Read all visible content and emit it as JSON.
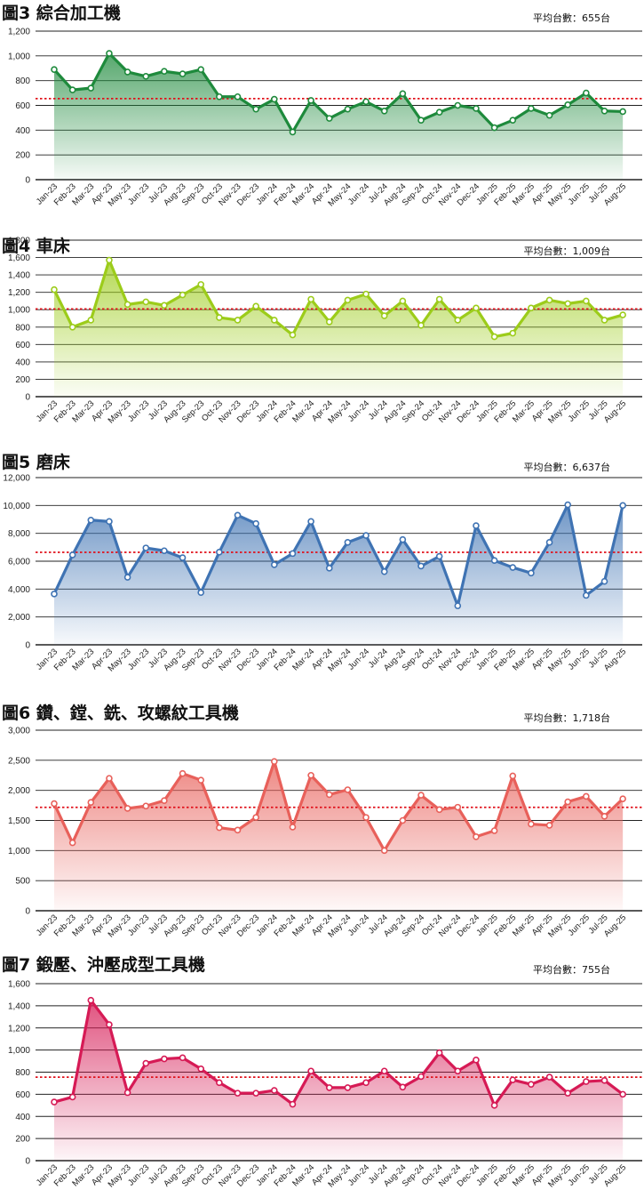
{
  "chart_data": [
    {
      "type": "area",
      "title": "圖3 綜合加工機",
      "average_label": "平均台數：655台",
      "average": 655,
      "ylim": [
        0,
        1200
      ],
      "yticks": [
        "0",
        "200",
        "400",
        "600",
        "800",
        "1,000",
        "1,200"
      ],
      "color": "#1e8a3c",
      "categories": [
        "Jan-23",
        "Feb-23",
        "Mar-23",
        "Apr-23",
        "May-23",
        "Jun-23",
        "Jul-23",
        "Aug-23",
        "Sep-23",
        "Oct-23",
        "Nov-23",
        "Dec-23",
        "Jan-24",
        "Feb-24",
        "Mar-24",
        "Apr-24",
        "May-24",
        "Jun-24",
        "Jul-24",
        "Aug-24",
        "Sep-24",
        "Oct-24",
        "Nov-24",
        "Dec-24",
        "Jan-25",
        "Feb-25",
        "Mar-25",
        "Apr-25",
        "May-25",
        "Jun-25",
        "Jul-25",
        "Aug-25"
      ],
      "values": [
        890,
        725,
        740,
        1020,
        870,
        835,
        875,
        855,
        890,
        670,
        670,
        570,
        650,
        385,
        640,
        495,
        570,
        630,
        555,
        695,
        480,
        545,
        600,
        575,
        420,
        480,
        575,
        520,
        605,
        700,
        555,
        550
      ]
    },
    {
      "type": "area",
      "title": "圖4 車床",
      "average_label": "平均台數：1,009台",
      "average": 1009,
      "ylim": [
        0,
        1800
      ],
      "yticks": [
        "0",
        "200",
        "400",
        "600",
        "800",
        "1,000",
        "1,200",
        "1,400",
        "1,600",
        "1,800"
      ],
      "color": "#9ccc1a",
      "categories": [
        "Jan-23",
        "Feb-23",
        "Mar-23",
        "Apr-23",
        "May-23",
        "Jun-23",
        "Jul-23",
        "Aug-23",
        "Sep-23",
        "Oct-23",
        "Nov-23",
        "Dec-23",
        "Jan-24",
        "Feb-24",
        "Mar-24",
        "Apr-24",
        "May-24",
        "Jun-24",
        "Jul-24",
        "Aug-24",
        "Sep-24",
        "Oct-24",
        "Nov-24",
        "Dec-24",
        "Jan-25",
        "Feb-25",
        "Mar-25",
        "Apr-25",
        "May-25",
        "Jun-25",
        "Jul-25",
        "Aug-25"
      ],
      "values": [
        1230,
        800,
        880,
        1570,
        1060,
        1090,
        1050,
        1170,
        1290,
        910,
        880,
        1040,
        880,
        710,
        1120,
        860,
        1110,
        1180,
        930,
        1100,
        820,
        1120,
        880,
        1020,
        690,
        730,
        1020,
        1110,
        1070,
        1100,
        880,
        940
      ]
    },
    {
      "type": "area",
      "title": "圖5 磨床",
      "average_label": "平均台數：6,637台",
      "average": 6637,
      "ylim": [
        0,
        12000
      ],
      "yticks": [
        "0",
        "2,000",
        "4,000",
        "6,000",
        "8,000",
        "10,000",
        "12,000"
      ],
      "color": "#3f73b3",
      "categories": [
        "Jan-23",
        "Feb-23",
        "Mar-23",
        "Apr-23",
        "May-23",
        "Jun-23",
        "Jul-23",
        "Aug-23",
        "Sep-23",
        "Oct-23",
        "Nov-23",
        "Dec-23",
        "Jan-24",
        "Feb-24",
        "Mar-24",
        "Apr-24",
        "May-24",
        "Jun-24",
        "Jul-24",
        "Aug-24",
        "Sep-24",
        "Oct-24",
        "Nov-24",
        "Dec-24",
        "Jan-25",
        "Feb-25",
        "Mar-25",
        "Apr-25",
        "May-25",
        "Jun-25",
        "Jul-25",
        "Aug-25"
      ],
      "values": [
        3650,
        6450,
        8950,
        8850,
        4850,
        6950,
        6750,
        6250,
        3750,
        6650,
        9300,
        8700,
        5750,
        6550,
        8850,
        5500,
        7350,
        7850,
        5250,
        7550,
        5650,
        6350,
        2800,
        8550,
        6050,
        5550,
        5150,
        7350,
        10050,
        3550,
        4550,
        10000
      ]
    },
    {
      "type": "area",
      "title": "圖6 鑽、鏜、銑、攻螺紋工具機",
      "average_label": "平均台數：1,718台",
      "average": 1718,
      "ylim": [
        0,
        3000
      ],
      "yticks": [
        "0",
        "500",
        "1,000",
        "1,500",
        "2,000",
        "2,500",
        "3,000"
      ],
      "color": "#e8605a",
      "categories": [
        "Jan-23",
        "Feb-23",
        "Mar-23",
        "Apr-23",
        "May-23",
        "Jun-23",
        "Jul-23",
        "Aug-23",
        "Sep-23",
        "Oct-23",
        "Nov-23",
        "Dec-23",
        "Jan-24",
        "Feb-24",
        "Mar-24",
        "Apr-24",
        "May-24",
        "Jun-24",
        "Jul-24",
        "Aug-24",
        "Sep-24",
        "Oct-24",
        "Nov-24",
        "Dec-24",
        "Jan-25",
        "Feb-25",
        "Mar-25",
        "Apr-25",
        "May-25",
        "Jun-25",
        "Jul-25",
        "Aug-25"
      ],
      "values": [
        1780,
        1130,
        1800,
        2200,
        1700,
        1740,
        1830,
        2280,
        2170,
        1380,
        1340,
        1550,
        2480,
        1390,
        2250,
        1930,
        2010,
        1550,
        1000,
        1500,
        1920,
        1680,
        1720,
        1230,
        1330,
        2240,
        1440,
        1420,
        1810,
        1900,
        1570,
        1860
      ]
    },
    {
      "type": "area",
      "title": "圖7 鍛壓、沖壓成型工具機",
      "average_label": "平均台數：755台",
      "average": 755,
      "ylim": [
        0,
        1600
      ],
      "yticks": [
        "0",
        "200",
        "400",
        "600",
        "800",
        "1,000",
        "1,200",
        "1,400",
        "1,600"
      ],
      "color": "#d61a55",
      "categories": [
        "Jan-23",
        "Feb-23",
        "Mar-23",
        "Apr-23",
        "May-23",
        "Jun-23",
        "Jul-23",
        "Aug-23",
        "Sep-23",
        "Oct-23",
        "Nov-23",
        "Dec-23",
        "Jan-24",
        "Feb-24",
        "Mar-24",
        "Apr-24",
        "May-24",
        "Jun-24",
        "Jul-24",
        "Aug-24",
        "Sep-24",
        "Oct-24",
        "Nov-24",
        "Dec-24",
        "Jan-25",
        "Feb-25",
        "Mar-25",
        "Apr-25",
        "May-25",
        "Jun-25",
        "Jul-25",
        "Aug-25"
      ],
      "values": [
        530,
        575,
        1450,
        1230,
        615,
        880,
        920,
        930,
        830,
        705,
        610,
        610,
        635,
        510,
        810,
        660,
        660,
        705,
        810,
        665,
        760,
        975,
        810,
        910,
        500,
        730,
        690,
        755,
        610,
        715,
        725,
        600
      ]
    }
  ],
  "average_line_color": "#e0101a"
}
